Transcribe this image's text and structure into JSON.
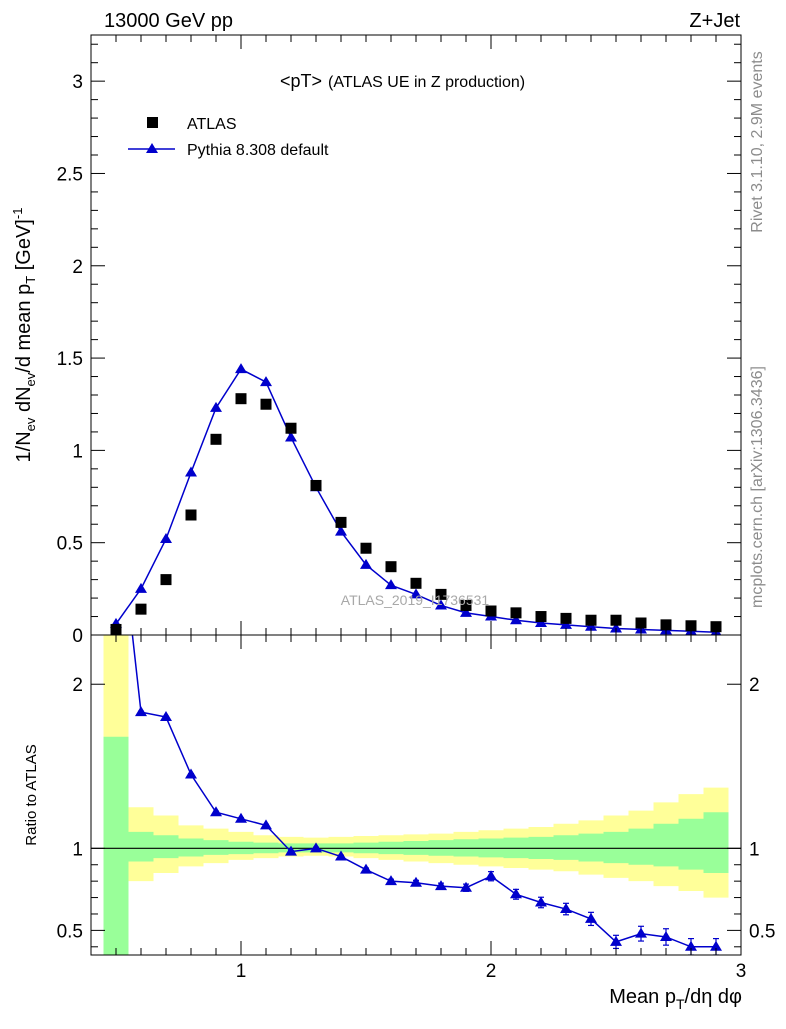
{
  "header": {
    "left": "13000 GeV pp",
    "right": "Z+Jet"
  },
  "side_labels": {
    "rivet": "Rivet 3.1.10,  2.9M events",
    "source": "mcplots.cern.ch [arXiv:1306.3436]"
  },
  "watermark": "ATLAS_2019_I1736531",
  "colors": {
    "mc": "#0000cc",
    "data": "#000000",
    "band_stat": "#99ff99",
    "band_total": "#ffff99"
  },
  "chart_data": [
    {
      "type": "scatter",
      "title": "<pT>",
      "subtitle": "(ATLAS UE in Z production)",
      "ylabel": "1/N_ev dN_ev/d mean p_T [GeV]^-1",
      "xlim": [
        0.4,
        3.0
      ],
      "ylim": [
        0,
        3.25
      ],
      "yticks": [
        0,
        0.5,
        1,
        1.5,
        2,
        2.5,
        3
      ],
      "ytick_labels": [
        "0",
        "0.5",
        "1",
        "1.5",
        "2",
        "2.5",
        "3"
      ],
      "legend_position": "top-left",
      "x": [
        0.5,
        0.6,
        0.7,
        0.8,
        0.9,
        1.0,
        1.1,
        1.2,
        1.3,
        1.4,
        1.5,
        1.6,
        1.7,
        1.8,
        1.9,
        2.0,
        2.1,
        2.2,
        2.3,
        2.4,
        2.5,
        2.6,
        2.7,
        2.8,
        2.9
      ],
      "series": [
        {
          "name": "ATLAS",
          "marker": "square",
          "values": [
            0.03,
            0.14,
            0.3,
            0.65,
            1.06,
            1.28,
            1.25,
            1.12,
            0.81,
            0.61,
            0.47,
            0.37,
            0.28,
            0.22,
            0.16,
            0.13,
            0.12,
            0.1,
            0.09,
            0.08,
            0.08,
            0.065,
            0.055,
            0.05,
            0.045
          ]
        },
        {
          "name": "Pythia 8.308 default",
          "marker": "triangle-line",
          "values": [
            0.06,
            0.25,
            0.52,
            0.88,
            1.23,
            1.44,
            1.37,
            1.07,
            0.8,
            0.56,
            0.38,
            0.27,
            0.22,
            0.16,
            0.12,
            0.1,
            0.08,
            0.065,
            0.055,
            0.045,
            0.035,
            0.03,
            0.025,
            0.02,
            0.015
          ]
        }
      ]
    },
    {
      "type": "line",
      "ylabel": "Ratio to ATLAS",
      "xlabel": "Mean p_T/dη dφ",
      "xlim": [
        0.4,
        3.0
      ],
      "ylim": [
        0.35,
        2.3
      ],
      "xticks": [
        1,
        2,
        3
      ],
      "xtick_labels": [
        "1",
        "2",
        "3"
      ],
      "yticks": [
        0.5,
        1,
        2
      ],
      "ytick_labels": [
        "0.5",
        "1",
        "2"
      ],
      "bins": [
        0.45,
        0.55,
        0.65,
        0.75,
        0.85,
        0.95,
        1.05,
        1.15,
        1.25,
        1.35,
        1.45,
        1.55,
        1.65,
        1.75,
        1.85,
        1.95,
        2.05,
        2.15,
        2.25,
        2.35,
        2.45,
        2.55,
        2.65,
        2.75,
        2.85,
        2.95
      ],
      "band_total": {
        "lo": [
          0.2,
          0.8,
          0.85,
          0.89,
          0.91,
          0.93,
          0.94,
          0.95,
          0.955,
          0.95,
          0.94,
          0.93,
          0.92,
          0.91,
          0.9,
          0.89,
          0.88,
          0.87,
          0.86,
          0.84,
          0.82,
          0.8,
          0.77,
          0.74,
          0.7
        ],
        "hi": [
          2.3,
          1.25,
          1.2,
          1.14,
          1.12,
          1.1,
          1.08,
          1.07,
          1.065,
          1.07,
          1.075,
          1.08,
          1.085,
          1.09,
          1.1,
          1.11,
          1.12,
          1.13,
          1.15,
          1.17,
          1.2,
          1.23,
          1.28,
          1.33,
          1.37
        ]
      },
      "band_stat": {
        "lo": [
          0.2,
          0.92,
          0.94,
          0.95,
          0.96,
          0.965,
          0.97,
          0.975,
          0.975,
          0.975,
          0.97,
          0.965,
          0.96,
          0.955,
          0.95,
          0.945,
          0.94,
          0.935,
          0.93,
          0.92,
          0.91,
          0.9,
          0.89,
          0.87,
          0.85
        ],
        "hi": [
          1.68,
          1.1,
          1.08,
          1.06,
          1.05,
          1.04,
          1.035,
          1.03,
          1.03,
          1.03,
          1.035,
          1.04,
          1.045,
          1.05,
          1.055,
          1.06,
          1.065,
          1.07,
          1.08,
          1.09,
          1.1,
          1.12,
          1.15,
          1.18,
          1.22
        ]
      },
      "series": [
        {
          "name": "Pythia 8.308 default",
          "x": [
            0.5,
            0.6,
            0.7,
            0.8,
            0.9,
            1.0,
            1.1,
            1.2,
            1.3,
            1.4,
            1.5,
            1.6,
            1.7,
            1.8,
            1.9,
            2.0,
            2.1,
            2.2,
            2.3,
            2.4,
            2.5,
            2.6,
            2.7,
            2.8,
            2.9
          ],
          "values": [
            3.2,
            1.83,
            1.8,
            1.45,
            1.22,
            1.18,
            1.14,
            0.98,
            1.0,
            0.95,
            0.87,
            0.8,
            0.79,
            0.77,
            0.76,
            0.83,
            0.72,
            0.67,
            0.63,
            0.57,
            0.43,
            0.48,
            0.46,
            0.4,
            0.4
          ],
          "err": [
            0,
            0.005,
            0.005,
            0.005,
            0.006,
            0.006,
            0.006,
            0.007,
            0.007,
            0.008,
            0.01,
            0.012,
            0.015,
            0.018,
            0.022,
            0.028,
            0.03,
            0.032,
            0.035,
            0.04,
            0.04,
            0.045,
            0.05,
            0.05,
            0.05
          ]
        }
      ]
    }
  ]
}
